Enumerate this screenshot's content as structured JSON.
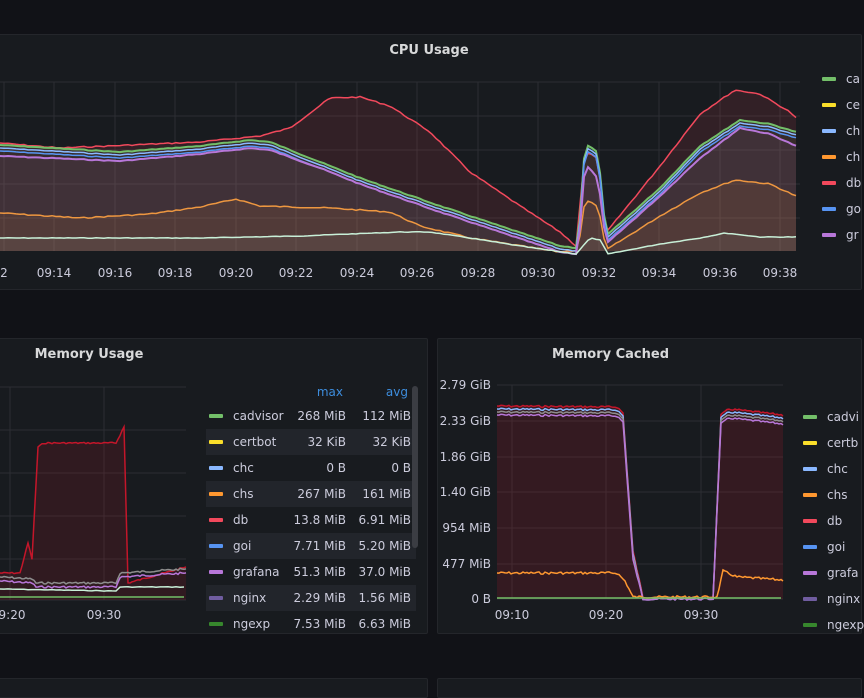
{
  "panels": {
    "cpu": {
      "title": "CPU Usage",
      "x_ticks": [
        "2",
        "09:14",
        "09:16",
        "09:18",
        "09:20",
        "09:22",
        "09:24",
        "09:26",
        "09:28",
        "09:30",
        "09:32",
        "09:34",
        "09:36",
        "09:38"
      ],
      "legend": [
        {
          "label": "ca",
          "color": "#73bf69",
          "icon": "swatch"
        },
        {
          "label": "ce",
          "color": "#fade2a",
          "icon": "swatch"
        },
        {
          "label": "ch",
          "color": "#8ab8ff",
          "icon": "swatch"
        },
        {
          "label": "ch",
          "color": "#ff9830",
          "icon": "swatch"
        },
        {
          "label": "db",
          "color": "#f2495c",
          "icon": "swatch"
        },
        {
          "label": "go",
          "color": "#5794f2",
          "icon": "swatch"
        },
        {
          "label": "gr",
          "color": "#b877d9",
          "icon": "swatch"
        }
      ]
    },
    "memory_usage": {
      "title": "Memory Usage",
      "x_ticks": [
        "9:20",
        "09:30"
      ],
      "columns": {
        "max": "max",
        "avg": "avg"
      },
      "rows": [
        {
          "name": "cadvisor",
          "max": "268 MiB",
          "avg": "112 MiB",
          "color": "#73bf69"
        },
        {
          "name": "certbot",
          "max": "32 KiB",
          "avg": "32 KiB",
          "color": "#fade2a"
        },
        {
          "name": "chc",
          "max": "0 B",
          "avg": "0 B",
          "color": "#8ab8ff"
        },
        {
          "name": "chs",
          "max": "267 MiB",
          "avg": "161 MiB",
          "color": "#ff9830"
        },
        {
          "name": "db",
          "max": "13.8 MiB",
          "avg": "6.91 MiB",
          "color": "#f2495c"
        },
        {
          "name": "goi",
          "max": "7.71 MiB",
          "avg": "5.20 MiB",
          "color": "#5794f2"
        },
        {
          "name": "grafana",
          "max": "51.3 MiB",
          "avg": "37.0 MiB",
          "color": "#b877d9"
        },
        {
          "name": "nginx",
          "max": "2.29 MiB",
          "avg": "1.56 MiB",
          "color": "#705da0"
        },
        {
          "name": "ngexp",
          "max": "7.53 MiB",
          "avg": "6.63 MiB",
          "color": "#37872d"
        }
      ]
    },
    "memory_cached": {
      "title": "Memory Cached",
      "y_ticks": [
        "2.79 GiB",
        "2.33 GiB",
        "1.86 GiB",
        "1.40 GiB",
        "954 MiB",
        "477 MiB",
        "0 B"
      ],
      "x_ticks": [
        "09:10",
        "09:20",
        "09:30"
      ],
      "legend": [
        {
          "label": "cadvi",
          "color": "#73bf69"
        },
        {
          "label": "certb",
          "color": "#fade2a"
        },
        {
          "label": "chc",
          "color": "#8ab8ff"
        },
        {
          "label": "chs",
          "color": "#ff9830"
        },
        {
          "label": "db",
          "color": "#f2495c"
        },
        {
          "label": "goi",
          "color": "#5794f2"
        },
        {
          "label": "grafa",
          "color": "#b877d9"
        },
        {
          "label": "nginx",
          "color": "#705da0"
        },
        {
          "label": "ngexp",
          "color": "#37872d"
        }
      ]
    }
  }
}
